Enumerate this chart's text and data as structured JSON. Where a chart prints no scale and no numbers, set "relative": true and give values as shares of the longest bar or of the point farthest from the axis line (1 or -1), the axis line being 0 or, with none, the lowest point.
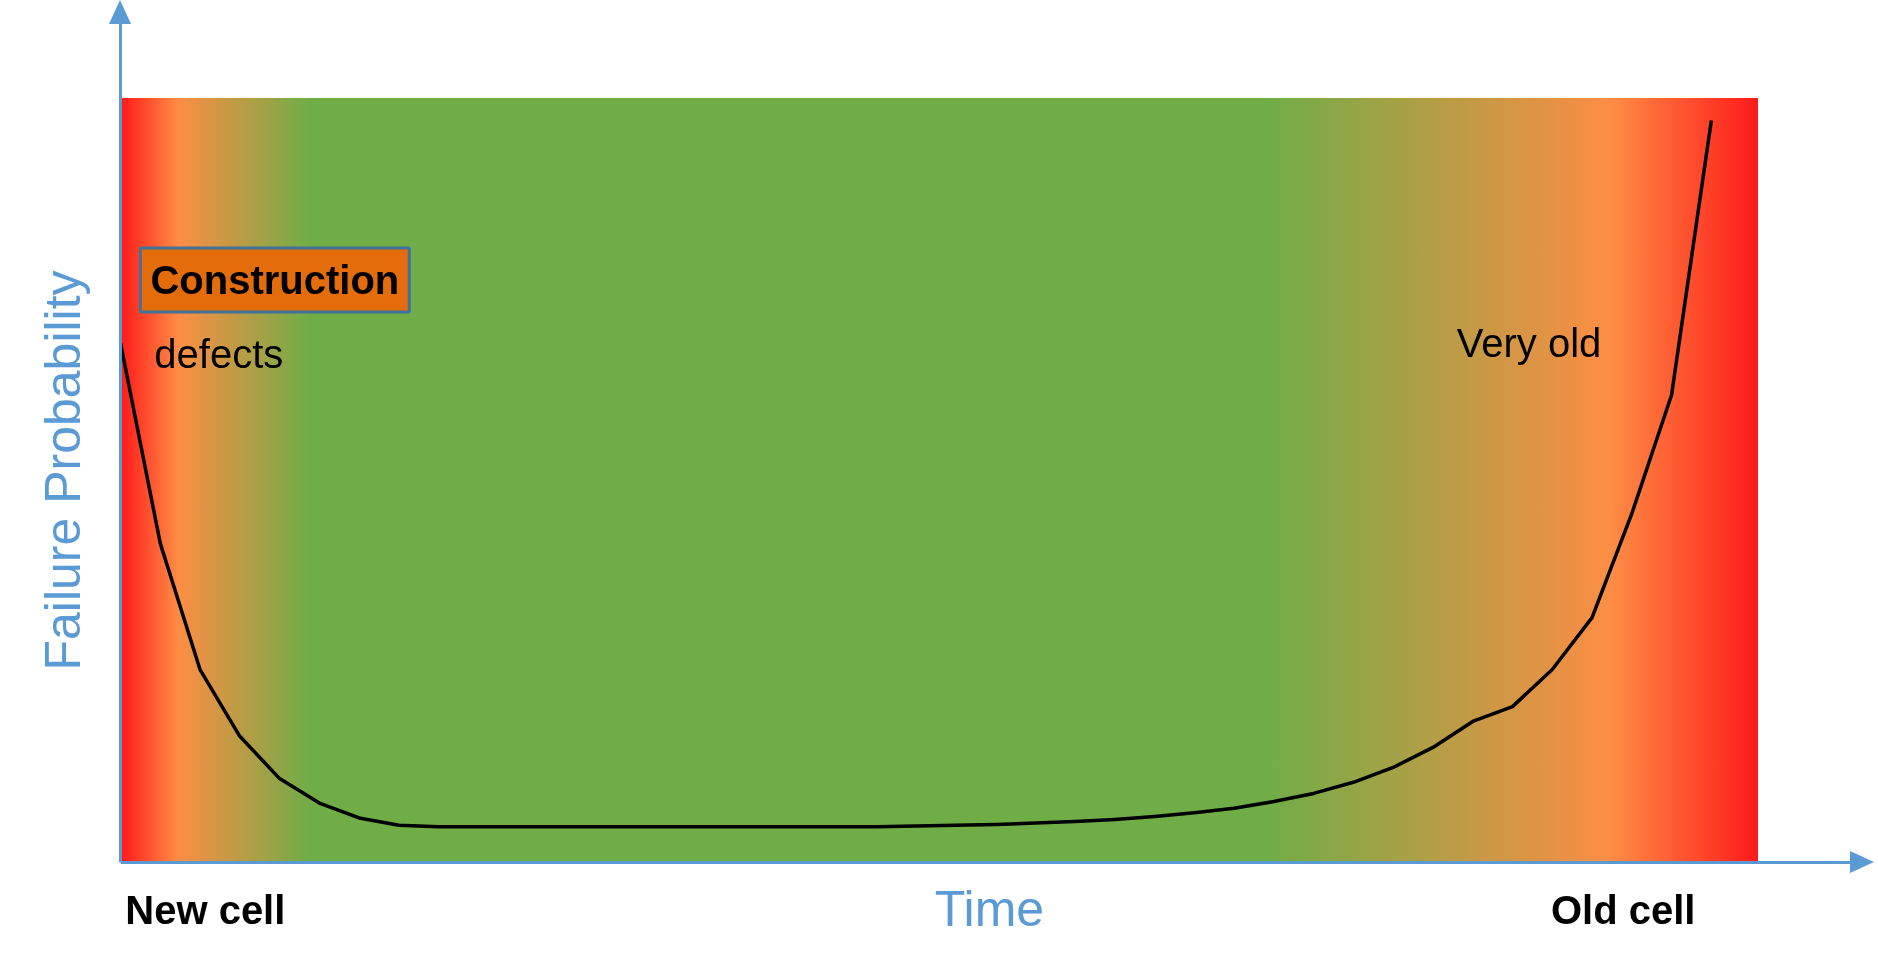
{
  "chart_data": {
    "type": "line",
    "relative": true,
    "xlabel": "Time",
    "ylabel": "Failure Probability",
    "categories": [
      null,
      null,
      null,
      null,
      null,
      null,
      null,
      null,
      null,
      null,
      null,
      null,
      null,
      null,
      null,
      null,
      null,
      null,
      null,
      null,
      null,
      null,
      null,
      null,
      null,
      null,
      null,
      null,
      null,
      null,
      null,
      null,
      null,
      null,
      null,
      null,
      null,
      null,
      null,
      null,
      null
    ],
    "series": [
      {
        "color": "#000000",
        "values": [
          0.7,
          0.43,
          0.26,
          0.17,
          0.113,
          0.08,
          0.06,
          0.05,
          0.048,
          0.048,
          0.048,
          0.048,
          0.048,
          0.048,
          0.048,
          0.048,
          0.048,
          0.048,
          0.048,
          0.048,
          0.049,
          0.05,
          0.051,
          0.053,
          0.055,
          0.058,
          0.062,
          0.067,
          0.073,
          0.082,
          0.093,
          0.108,
          0.128,
          0.155,
          0.19,
          0.21,
          0.26,
          0.33,
          0.47,
          0.63,
          1.0
        ]
      }
    ],
    "annotations": [
      "Construction",
      "defects",
      "Very old",
      "New cell",
      "Old cell"
    ],
    "line_style": "solid",
    "marker": "none"
  }
}
